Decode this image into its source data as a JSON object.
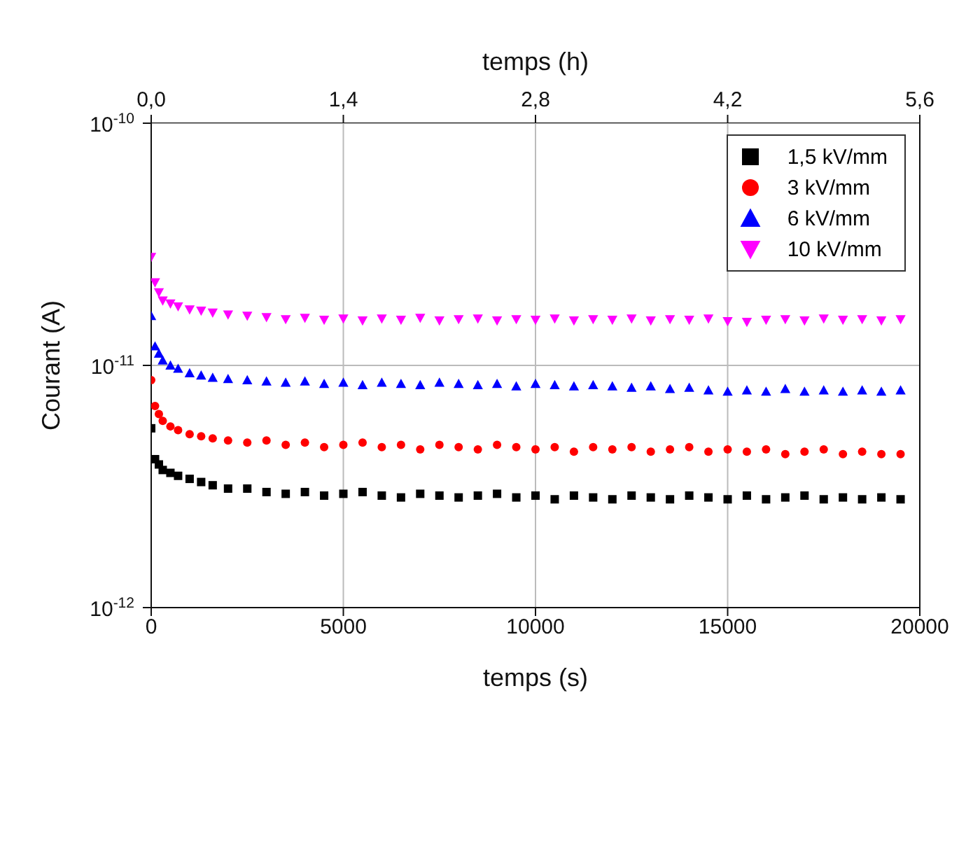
{
  "chart_data": {
    "type": "scatter",
    "xlabel": "temps (s)",
    "ylabel": "Courant (A)",
    "x2label": "temps (h)",
    "x": [
      0,
      100,
      200,
      300,
      500,
      700,
      1000,
      1300,
      1600,
      2000,
      2500,
      3000,
      3500,
      4000,
      4500,
      5000,
      5500,
      6000,
      6500,
      7000,
      7500,
      8000,
      8500,
      9000,
      9500,
      10000,
      10500,
      11000,
      11500,
      12000,
      12500,
      13000,
      13500,
      14000,
      14500,
      15000,
      15500,
      16000,
      16500,
      17000,
      17500,
      18000,
      18500,
      19000,
      19500
    ],
    "series": [
      {
        "name": "1,5 kV/mm",
        "color": "#000000",
        "marker": "square",
        "values": [
          5.5e-12,
          4.1e-12,
          3.9e-12,
          3.7e-12,
          3.6e-12,
          3.5e-12,
          3.4e-12,
          3.3e-12,
          3.2e-12,
          3.1e-12,
          3.1e-12,
          3e-12,
          2.95e-12,
          3e-12,
          2.9e-12,
          2.95e-12,
          3e-12,
          2.9e-12,
          2.85e-12,
          2.95e-12,
          2.9e-12,
          2.85e-12,
          2.9e-12,
          2.95e-12,
          2.85e-12,
          2.9e-12,
          2.8e-12,
          2.9e-12,
          2.85e-12,
          2.8e-12,
          2.9e-12,
          2.85e-12,
          2.8e-12,
          2.9e-12,
          2.85e-12,
          2.8e-12,
          2.9e-12,
          2.8e-12,
          2.85e-12,
          2.9e-12,
          2.8e-12,
          2.85e-12,
          2.8e-12,
          2.85e-12,
          2.8e-12
        ]
      },
      {
        "name": "3 kV/mm",
        "color": "#ff0000",
        "marker": "circle",
        "values": [
          8.7e-12,
          6.8e-12,
          6.3e-12,
          5.9e-12,
          5.6e-12,
          5.4e-12,
          5.2e-12,
          5.1e-12,
          5e-12,
          4.9e-12,
          4.8e-12,
          4.9e-12,
          4.7e-12,
          4.8e-12,
          4.6e-12,
          4.7e-12,
          4.8e-12,
          4.6e-12,
          4.7e-12,
          4.5e-12,
          4.7e-12,
          4.6e-12,
          4.5e-12,
          4.7e-12,
          4.6e-12,
          4.5e-12,
          4.6e-12,
          4.4e-12,
          4.6e-12,
          4.5e-12,
          4.6e-12,
          4.4e-12,
          4.5e-12,
          4.6e-12,
          4.4e-12,
          4.5e-12,
          4.4e-12,
          4.5e-12,
          4.3e-12,
          4.4e-12,
          4.5e-12,
          4.3e-12,
          4.4e-12,
          4.3e-12,
          4.3e-12
        ]
      },
      {
        "name": "6 kV/mm",
        "color": "#0000ff",
        "marker": "triangle",
        "values": [
          1.6e-11,
          1.2e-11,
          1.12e-11,
          1.05e-11,
          1e-11,
          9.7e-12,
          9.3e-12,
          9.1e-12,
          8.9e-12,
          8.8e-12,
          8.7e-12,
          8.6e-12,
          8.5e-12,
          8.6e-12,
          8.4e-12,
          8.5e-12,
          8.3e-12,
          8.5e-12,
          8.4e-12,
          8.3e-12,
          8.5e-12,
          8.4e-12,
          8.3e-12,
          8.4e-12,
          8.2e-12,
          8.4e-12,
          8.3e-12,
          8.2e-12,
          8.3e-12,
          8.2e-12,
          8.1e-12,
          8.2e-12,
          8e-12,
          8.1e-12,
          7.9e-12,
          7.8e-12,
          7.9e-12,
          7.8e-12,
          8e-12,
          7.8e-12,
          7.9e-12,
          7.8e-12,
          7.9e-12,
          7.8e-12,
          7.9e-12
        ]
      },
      {
        "name": "10 kV/mm",
        "color": "#ff00ff",
        "marker": "triangle-down",
        "values": [
          2.8e-11,
          2.2e-11,
          2e-11,
          1.85e-11,
          1.8e-11,
          1.75e-11,
          1.7e-11,
          1.68e-11,
          1.65e-11,
          1.62e-11,
          1.6e-11,
          1.58e-11,
          1.55e-11,
          1.57e-11,
          1.54e-11,
          1.56e-11,
          1.53e-11,
          1.56e-11,
          1.54e-11,
          1.57e-11,
          1.53e-11,
          1.55e-11,
          1.56e-11,
          1.53e-11,
          1.55e-11,
          1.54e-11,
          1.56e-11,
          1.53e-11,
          1.55e-11,
          1.54e-11,
          1.56e-11,
          1.53e-11,
          1.55e-11,
          1.54e-11,
          1.56e-11,
          1.52e-11,
          1.51e-11,
          1.54e-11,
          1.55e-11,
          1.53e-11,
          1.56e-11,
          1.54e-11,
          1.55e-11,
          1.53e-11,
          1.55e-11
        ]
      }
    ],
    "xlim": [
      0,
      20000
    ],
    "xticks": [
      0,
      5000,
      10000,
      15000,
      20000
    ],
    "x2lim": [
      0,
      5.6
    ],
    "x2ticks": [
      {
        "value": 0,
        "label": "0,0"
      },
      {
        "value": 1.4,
        "label": "1,4"
      },
      {
        "value": 2.8,
        "label": "2,8"
      },
      {
        "value": 4.2,
        "label": "4,2"
      },
      {
        "value": 5.6,
        "label": "5,6"
      }
    ],
    "ylim": [
      1e-12,
      1e-10
    ],
    "yticks": [
      {
        "value": 1e-12,
        "label": "10$^{-12}$"
      },
      {
        "value": 1e-11,
        "label": "10$^{-11}$"
      },
      {
        "value": 1e-10,
        "label": "10$^{-10}$"
      }
    ],
    "log": "y",
    "grid": true,
    "legend": "top right"
  }
}
